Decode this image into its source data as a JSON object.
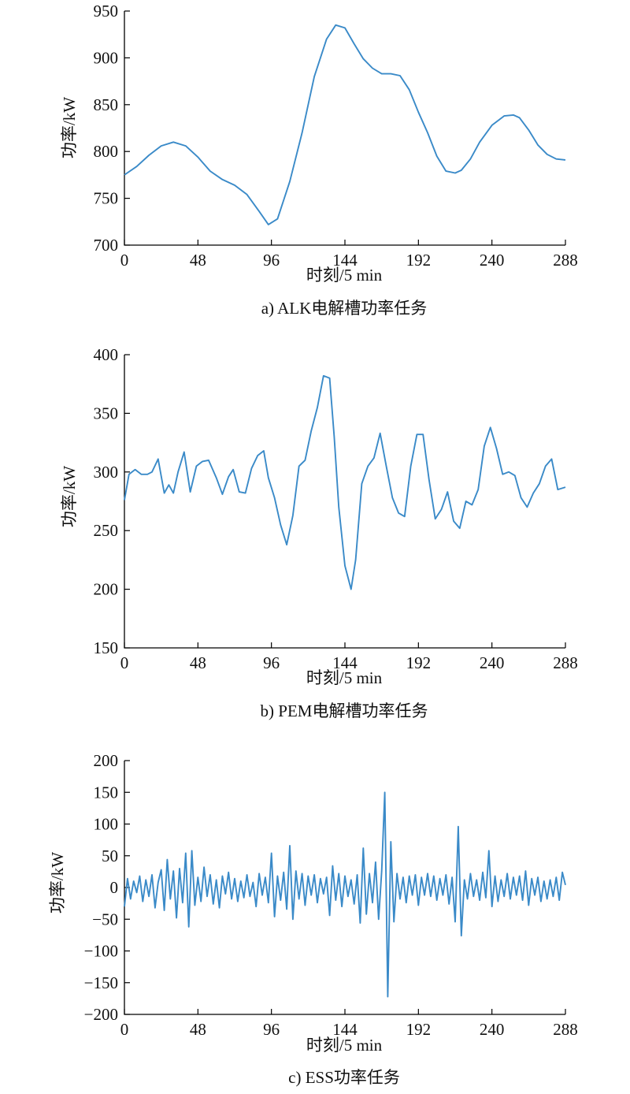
{
  "chart_data": [
    {
      "type": "line",
      "caption": "a) ALK电解槽功率任务",
      "xlabel": "时刻/5 min",
      "ylabel": "功率/kW",
      "xlim": [
        0,
        288
      ],
      "ylim": [
        700,
        950
      ],
      "xticks": [
        "0",
        "48",
        "96",
        "144",
        "192",
        "240",
        "288"
      ],
      "yticks": [
        "700",
        "750",
        "800",
        "850",
        "900",
        "950"
      ],
      "color": "#3a8ac8",
      "x": [
        0,
        8,
        16,
        24,
        32,
        40,
        48,
        56,
        64,
        72,
        80,
        88,
        94,
        100,
        108,
        116,
        124,
        132,
        138,
        144,
        150,
        156,
        162,
        168,
        174,
        180,
        186,
        192,
        198,
        204,
        210,
        216,
        220,
        226,
        232,
        240,
        248,
        254,
        258,
        264,
        270,
        276,
        282,
        288
      ],
      "values": [
        775,
        784,
        796,
        806,
        810,
        806,
        794,
        779,
        770,
        764,
        754,
        736,
        722,
        728,
        768,
        820,
        880,
        920,
        935,
        932,
        915,
        899,
        889,
        883,
        883,
        881,
        866,
        842,
        820,
        795,
        779,
        777,
        780,
        792,
        810,
        828,
        838,
        839,
        836,
        823,
        807,
        797,
        792,
        791
      ]
    },
    {
      "type": "line",
      "caption": "b) PEM电解槽功率任务",
      "xlabel": "时刻/5 min",
      "ylabel": "功率/kW",
      "xlim": [
        0,
        288
      ],
      "ylim": [
        150,
        400
      ],
      "xticks": [
        "0",
        "48",
        "96",
        "144",
        "192",
        "240",
        "288"
      ],
      "yticks": [
        "150",
        "200",
        "250",
        "300",
        "350",
        "400"
      ],
      "color": "#3a8ac8",
      "x": [
        0,
        3,
        7,
        11,
        15,
        18,
        22,
        26,
        29,
        32,
        35,
        39,
        43,
        47,
        51,
        55,
        60,
        64,
        68,
        71,
        75,
        79,
        83,
        87,
        91,
        94,
        98,
        102,
        106,
        110,
        114,
        118,
        122,
        126,
        130,
        134,
        137,
        140,
        144,
        148,
        151,
        155,
        159,
        163,
        167,
        171,
        175,
        179,
        183,
        187,
        191,
        195,
        199,
        203,
        207,
        211,
        215,
        219,
        223,
        227,
        231,
        235,
        239,
        243,
        247,
        251,
        255,
        259,
        263,
        267,
        271,
        275,
        279,
        283,
        288
      ],
      "values": [
        276,
        298,
        302,
        298,
        298,
        300,
        311,
        282,
        289,
        282,
        300,
        317,
        283,
        305,
        309,
        310,
        295,
        281,
        296,
        302,
        283,
        282,
        303,
        314,
        318,
        295,
        278,
        255,
        238,
        263,
        305,
        310,
        335,
        355,
        382,
        380,
        330,
        270,
        220,
        200,
        225,
        290,
        305,
        312,
        333,
        305,
        278,
        265,
        262,
        305,
        332,
        332,
        293,
        260,
        268,
        283,
        258,
        252,
        275,
        272,
        285,
        322,
        338,
        320,
        298,
        300,
        297,
        278,
        270,
        282,
        290,
        305,
        311,
        285,
        287
      ]
    },
    {
      "type": "line",
      "caption": "c) ESS功率任务",
      "xlabel": "时刻/5 min",
      "ylabel": "功率/kW",
      "xlim": [
        0,
        288
      ],
      "ylim": [
        -200,
        200
      ],
      "xticks": [
        "0",
        "48",
        "96",
        "144",
        "192",
        "240",
        "288"
      ],
      "yticks": [
        "−200",
        "−150",
        "−100",
        "−50",
        "0",
        "50",
        "100",
        "150",
        "200"
      ],
      "color": "#3a8ac8",
      "x": [
        0,
        2,
        4,
        6,
        8,
        10,
        12,
        14,
        16,
        18,
        20,
        22,
        24,
        26,
        28,
        30,
        32,
        34,
        36,
        38,
        40,
        42,
        44,
        46,
        48,
        50,
        52,
        54,
        56,
        58,
        60,
        62,
        64,
        66,
        68,
        70,
        72,
        74,
        76,
        78,
        80,
        82,
        84,
        86,
        88,
        90,
        92,
        94,
        96,
        98,
        100,
        102,
        104,
        106,
        108,
        110,
        112,
        114,
        116,
        118,
        120,
        122,
        124,
        126,
        128,
        130,
        132,
        134,
        136,
        138,
        140,
        142,
        144,
        146,
        148,
        150,
        152,
        154,
        156,
        158,
        160,
        162,
        164,
        166,
        168,
        170,
        172,
        174,
        176,
        178,
        180,
        182,
        184,
        186,
        188,
        190,
        192,
        194,
        196,
        198,
        200,
        202,
        204,
        206,
        208,
        210,
        212,
        214,
        216,
        218,
        220,
        222,
        224,
        226,
        228,
        230,
        232,
        234,
        236,
        238,
        240,
        242,
        244,
        246,
        248,
        250,
        252,
        254,
        256,
        258,
        260,
        262,
        264,
        266,
        268,
        270,
        272,
        274,
        276,
        278,
        280,
        282,
        284,
        286,
        288
      ],
      "values": [
        -30,
        14,
        -18,
        10,
        -8,
        18,
        -22,
        12,
        -14,
        20,
        -32,
        8,
        28,
        -36,
        44,
        -18,
        26,
        -48,
        30,
        -24,
        54,
        -62,
        58,
        -28,
        16,
        -22,
        32,
        -14,
        20,
        -26,
        12,
        -32,
        18,
        -10,
        24,
        -18,
        14,
        -22,
        10,
        -16,
        20,
        -14,
        8,
        -30,
        22,
        -12,
        16,
        -24,
        54,
        -46,
        18,
        -20,
        24,
        -34,
        66,
        -50,
        26,
        -18,
        22,
        -28,
        18,
        -12,
        20,
        -24,
        14,
        -10,
        16,
        -44,
        34,
        -20,
        22,
        -30,
        18,
        -14,
        12,
        -26,
        20,
        -56,
        62,
        -42,
        22,
        -24,
        40,
        -50,
        26,
        150,
        -172,
        72,
        -54,
        22,
        -18,
        16,
        -24,
        18,
        -12,
        20,
        -28,
        16,
        -12,
        22,
        -14,
        18,
        -20,
        14,
        -12,
        20,
        -26,
        16,
        -54,
        96,
        -76,
        12,
        -18,
        22,
        -14,
        12,
        -20,
        24,
        -16,
        58,
        -30,
        18,
        -22,
        12,
        -14,
        22,
        -18,
        16,
        -12,
        18,
        -20,
        26,
        -28,
        14,
        -12,
        16,
        -22,
        10,
        -18,
        12,
        -14,
        16,
        -20,
        24,
        4
      ]
    }
  ]
}
